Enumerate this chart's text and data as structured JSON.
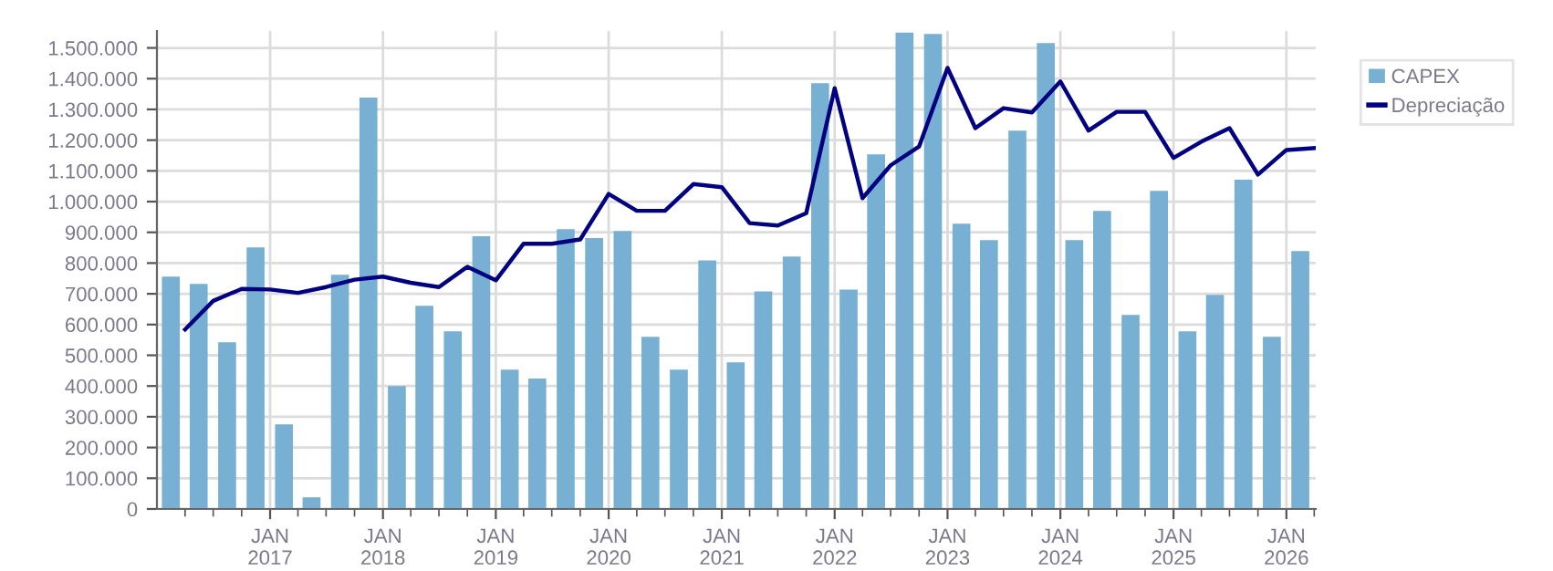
{
  "chart_data": {
    "type": "bar",
    "xlim": [
      "2016-01-01",
      "2026-04-06"
    ],
    "ylim": [
      0,
      1555000
    ],
    "yticks": [
      0,
      {
        "value": 100000,
        "label": "100.000"
      },
      {
        "value": 200000,
        "label": "200.000"
      },
      {
        "value": 300000,
        "label": "300.000"
      },
      {
        "value": 400000,
        "label": "400.000"
      },
      {
        "value": 500000,
        "label": "500.000"
      },
      {
        "value": 600000,
        "label": "600.000"
      },
      {
        "value": 700000,
        "label": "700.000"
      },
      {
        "value": 800000,
        "label": "800.000"
      },
      {
        "value": 900000,
        "label": "900.000"
      },
      {
        "value": 1000000,
        "label": "1.000.000"
      },
      {
        "value": 1100000,
        "label": "1.100.000"
      },
      {
        "value": 1200000,
        "label": "1.200.000"
      },
      {
        "value": 1300000,
        "label": "1.300.000"
      },
      {
        "value": 1400000,
        "label": "1.400.000"
      },
      {
        "value": 1500000,
        "label": "1.500.000"
      }
    ],
    "xticks": [
      {
        "value": "2016-04-01",
        "label": null
      },
      {
        "value": "2016-07-01",
        "label": null
      },
      {
        "value": "2016-10-01",
        "label": null
      },
      {
        "value": "2017-01-01",
        "label": "JAN\n2017"
      },
      {
        "value": "2017-04-01",
        "label": null
      },
      {
        "value": "2017-07-01",
        "label": null
      },
      {
        "value": "2017-10-01",
        "label": null
      },
      {
        "value": "2018-01-01",
        "label": "JAN\n2018"
      },
      {
        "value": "2018-04-01",
        "label": null
      },
      {
        "value": "2018-07-01",
        "label": null
      },
      {
        "value": "2018-10-01",
        "label": null
      },
      {
        "value": "2019-01-01",
        "label": "JAN\n2019"
      },
      {
        "value": "2019-04-01",
        "label": null
      },
      {
        "value": "2019-07-01",
        "label": null
      },
      {
        "value": "2019-10-01",
        "label": null
      },
      {
        "value": "2020-01-01",
        "label": "JAN\n2020"
      },
      {
        "value": "2020-04-01",
        "label": null
      },
      {
        "value": "2020-07-01",
        "label": null
      },
      {
        "value": "2020-10-01",
        "label": null
      },
      {
        "value": "2021-01-01",
        "label": "JAN\n2021"
      },
      {
        "value": "2021-04-01",
        "label": null
      },
      {
        "value": "2021-07-01",
        "label": null
      },
      {
        "value": "2021-10-01",
        "label": null
      },
      {
        "value": "2022-01-01",
        "label": "JAN\n2022"
      },
      {
        "value": "2022-04-01",
        "label": null
      },
      {
        "value": "2022-07-01",
        "label": null
      },
      {
        "value": "2022-10-01",
        "label": null
      },
      {
        "value": "2023-01-01",
        "label": "JAN\n2023"
      },
      {
        "value": "2023-04-01",
        "label": null
      },
      {
        "value": "2023-07-01",
        "label": null
      },
      {
        "value": "2023-10-01",
        "label": null
      },
      {
        "value": "2024-01-01",
        "label": "JAN\n2024"
      },
      {
        "value": "2024-04-01",
        "label": null
      },
      {
        "value": "2024-07-01",
        "label": null
      },
      {
        "value": "2024-10-01",
        "label": null
      },
      {
        "value": "2025-01-01",
        "label": "JAN\n2025"
      },
      {
        "value": "2025-04-01",
        "label": null
      },
      {
        "value": "2025-07-01",
        "label": null
      },
      {
        "value": "2025-10-01",
        "label": null
      },
      {
        "value": "2026-01-01",
        "label": "JAN\n2026"
      },
      {
        "value": "2026-04-01",
        "label": null
      }
    ],
    "grid": true,
    "legend": "top right",
    "series": [
      {
        "name": "CAPEX",
        "color": "#77b0d3",
        "x": [
          "2016-02-15",
          "2016-05-15",
          "2016-08-15",
          "2016-11-15",
          "2017-02-15",
          "2017-05-15",
          "2017-08-15",
          "2017-11-15",
          "2018-02-15",
          "2018-05-15",
          "2018-08-15",
          "2018-11-15",
          "2019-02-15",
          "2019-05-15",
          "2019-08-15",
          "2019-11-15",
          "2020-02-15",
          "2020-05-15",
          "2020-08-15",
          "2020-11-15",
          "2021-02-15",
          "2021-05-15",
          "2021-08-15",
          "2021-11-15",
          "2022-02-15",
          "2022-05-15",
          "2022-08-15",
          "2022-11-15",
          "2023-02-15",
          "2023-05-15",
          "2023-08-15",
          "2023-11-15",
          "2024-02-15",
          "2024-05-15",
          "2024-08-15",
          "2024-11-15",
          "2025-02-15",
          "2025-05-15",
          "2025-08-15",
          "2025-11-15",
          "2026-02-15"
        ],
        "values": [
          756000,
          732000,
          542000,
          851000,
          275000,
          38000,
          762000,
          1338000,
          400000,
          661000,
          578000,
          887000,
          453000,
          424000,
          910000,
          881000,
          904000,
          560000,
          453000,
          809000,
          477000,
          708000,
          821000,
          1385000,
          714000,
          1154000,
          1550000,
          1545000,
          928000,
          875000,
          1231000,
          1516000,
          875000,
          970000,
          631000,
          1035000,
          578000,
          697000,
          1071000,
          560000,
          839000
        ]
      },
      {
        "name": "Depreciação",
        "type": "line",
        "color": "#000080",
        "x": [
          "2016-04-01",
          "2016-07-01",
          "2016-10-01",
          "2017-01-01",
          "2017-04-01",
          "2017-07-01",
          "2017-10-01",
          "2018-01-01",
          "2018-04-01",
          "2018-07-01",
          "2018-10-01",
          "2019-01-01",
          "2019-04-01",
          "2019-07-01",
          "2019-10-01",
          "2020-01-01",
          "2020-04-01",
          "2020-07-01",
          "2020-10-01",
          "2021-01-01",
          "2021-04-01",
          "2021-07-01",
          "2021-10-01",
          "2022-01-01",
          "2022-04-01",
          "2022-07-01",
          "2022-10-01",
          "2023-01-01",
          "2023-04-01",
          "2023-07-01",
          "2023-10-01",
          "2024-01-01",
          "2024-04-01",
          "2024-07-01",
          "2024-10-01",
          "2025-01-01",
          "2025-04-01",
          "2025-07-01",
          "2025-10-01",
          "2026-01-01",
          "2026-04-01"
        ],
        "values": [
          584000,
          677000,
          716000,
          714000,
          703000,
          722000,
          746000,
          756000,
          736000,
          722000,
          788000,
          744000,
          863000,
          863000,
          877000,
          1025000,
          970000,
          970000,
          1057000,
          1047000,
          930000,
          922000,
          962000,
          1369000,
          1011000,
          1118000,
          1179000,
          1435000,
          1239000,
          1304000,
          1290000,
          1391000,
          1231000,
          1292000,
          1292000,
          1142000,
          1195000,
          1239000,
          1088000,
          1168000,
          1174000
        ]
      }
    ]
  }
}
